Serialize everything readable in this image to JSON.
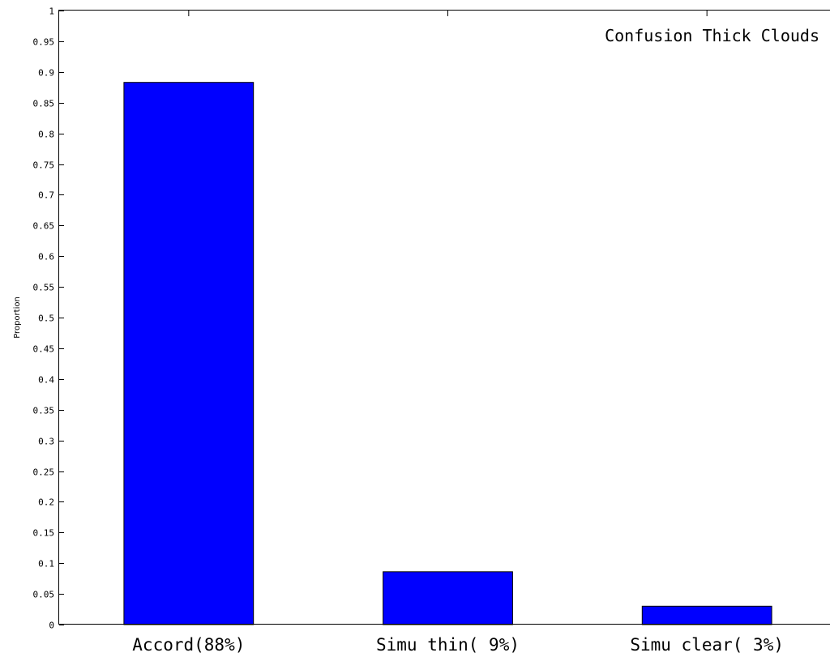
{
  "chart_data": {
    "type": "bar",
    "categories": [
      "Accord(88%)",
      "Simu thin( 9%)",
      "Simu clear( 3%)"
    ],
    "values": [
      0.883,
      0.086,
      0.03
    ],
    "ylabel": "Proportion",
    "xlabel": "",
    "ylim": [
      0,
      1
    ],
    "yticks": [
      "0",
      "0.05",
      "0.1",
      "0.15",
      "0.2",
      "0.25",
      "0.3",
      "0.35",
      "0.4",
      "0.45",
      "0.5",
      "0.55",
      "0.6",
      "0.65",
      "0.7",
      "0.75",
      "0.8",
      "0.85",
      "0.9",
      "0.95",
      "1"
    ],
    "ytick_values": [
      0,
      0.05,
      0.1,
      0.15,
      0.2,
      0.25,
      0.3,
      0.35,
      0.4,
      0.45,
      0.5,
      0.55,
      0.6,
      0.65,
      0.7,
      0.75,
      0.8,
      0.85,
      0.9,
      0.95,
      1
    ],
    "annotation": "Confusion Thick Clouds",
    "bar_color": "#0000ff",
    "grid": false
  }
}
